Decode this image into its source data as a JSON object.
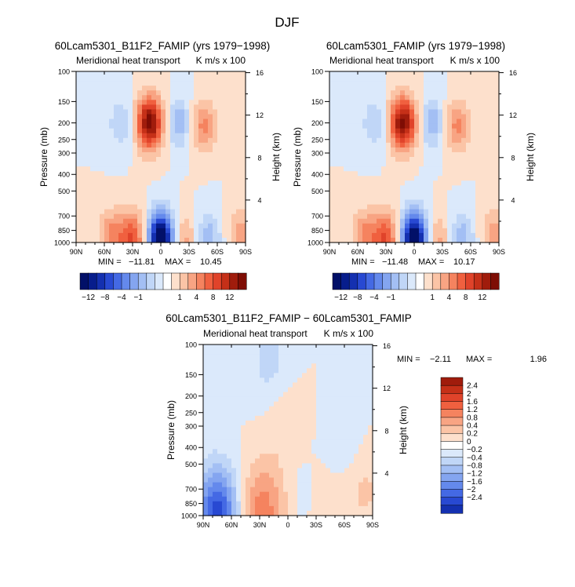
{
  "page_title": "DJF",
  "colors": {
    "pos": [
      "#fde0cc",
      "#fbc4a6",
      "#f8a483",
      "#f5835f",
      "#f0603f",
      "#e0432a",
      "#c53018",
      "#a01c0c",
      "#7e0d04"
    ],
    "neg": [
      "#dbe9fb",
      "#c0d6f7",
      "#a3bff4",
      "#84a5f0",
      "#6489ec",
      "#4469e4",
      "#2849d2",
      "#1430b0",
      "#071d8c",
      "#021068"
    ],
    "zero": "#ffffff"
  },
  "chart_data": [
    {
      "id": "panel1",
      "type": "heatmap",
      "title": "60Lcam5301_B11F2_FAMIP (yrs 1979−1998)",
      "subtitle_left": "Meridional heat transport",
      "subtitle_right": "K m/s x 100",
      "ylabel": "Pressure (mb)",
      "y2label": "Height (km)",
      "x_ticks": [
        "90N",
        "60N",
        "30N",
        "0",
        "30S",
        "60S",
        "90S"
      ],
      "x_values": [
        90,
        60,
        30,
        0,
        -30,
        -60,
        -90
      ],
      "y_ticks": [
        100,
        150,
        200,
        250,
        300,
        400,
        500,
        700,
        850,
        1000
      ],
      "y2_ticks": [
        4,
        8,
        12,
        16
      ],
      "stats": {
        "min_label": "MIN =",
        "min": "−11.81",
        "max_label": "MAX =",
        "max": "10.45"
      },
      "colorbar_labels": [
        "−12",
        "−8",
        "−4",
        "−1",
        "1",
        "4",
        "8",
        "12"
      ],
      "features": [
        {
          "lat": 30,
          "p": 950,
          "v": 6
        },
        {
          "lat": 52,
          "p": 930,
          "v": 4
        },
        {
          "lat": 0,
          "p": 950,
          "v": -11.81
        },
        {
          "lat": -25,
          "p": 960,
          "v": 3
        },
        {
          "lat": -50,
          "p": 950,
          "v": -3
        },
        {
          "lat": -85,
          "p": 900,
          "v": 3
        },
        {
          "lat": 12,
          "p": 200,
          "v": 10.45
        },
        {
          "lat": -45,
          "p": 210,
          "v": 4
        },
        {
          "lat": -20,
          "p": 200,
          "v": -3
        },
        {
          "lat": 42,
          "p": 200,
          "v": -2
        }
      ]
    },
    {
      "id": "panel2",
      "type": "heatmap",
      "title": "60Lcam5301_FAMIP (yrs 1979−1998)",
      "subtitle_left": "Meridional heat transport",
      "subtitle_right": "K m/s x 100",
      "ylabel": "Pressure (mb)",
      "y2label": "Height (km)",
      "x_ticks": [
        "90N",
        "60N",
        "30N",
        "0",
        "30S",
        "60S",
        "90S"
      ],
      "x_values": [
        90,
        60,
        30,
        0,
        -30,
        -60,
        -90
      ],
      "y_ticks": [
        100,
        150,
        200,
        250,
        300,
        400,
        500,
        700,
        850,
        1000
      ],
      "y2_ticks": [
        4,
        8,
        12,
        16
      ],
      "stats": {
        "min_label": "MIN =",
        "min": "−11.48",
        "max_label": "MAX =",
        "max": "10.17"
      },
      "colorbar_labels": [
        "−12",
        "−8",
        "−4",
        "−1",
        "1",
        "4",
        "8",
        "12"
      ],
      "features": [
        {
          "lat": 30,
          "p": 950,
          "v": 6
        },
        {
          "lat": 52,
          "p": 930,
          "v": 4
        },
        {
          "lat": 0,
          "p": 950,
          "v": -11.48
        },
        {
          "lat": -25,
          "p": 960,
          "v": 3
        },
        {
          "lat": -50,
          "p": 950,
          "v": -3
        },
        {
          "lat": -85,
          "p": 900,
          "v": 3
        },
        {
          "lat": 12,
          "p": 200,
          "v": 10.17
        },
        {
          "lat": -45,
          "p": 210,
          "v": 4
        },
        {
          "lat": -20,
          "p": 200,
          "v": -3
        },
        {
          "lat": 42,
          "p": 200,
          "v": -2
        }
      ]
    },
    {
      "id": "panel3",
      "type": "heatmap",
      "title": "60Lcam5301_B11F2_FAMIP − 60Lcam5301_FAMIP",
      "subtitle_left": "Meridional heat transport",
      "subtitle_right": "K m/s x 100",
      "ylabel": "Pressure (mb)",
      "y2label": "Height (km)",
      "x_ticks": [
        "90N",
        "60N",
        "30N",
        "0",
        "30S",
        "60S",
        "90S"
      ],
      "x_values": [
        90,
        60,
        30,
        0,
        -30,
        -60,
        -90
      ],
      "y_ticks": [
        100,
        150,
        200,
        250,
        300,
        400,
        500,
        700,
        850,
        1000
      ],
      "y2_ticks": [
        4,
        8,
        12,
        16
      ],
      "stats": {
        "min_label": "MIN =",
        "min": "−2.11",
        "max_label": "MAX =",
        "max": "1.96"
      },
      "colorbar_labels": [
        "2.4",
        "2",
        "1.6",
        "1.2",
        "0.8",
        "0.4",
        "0.2",
        "0",
        "−0.2",
        "−0.4",
        "−0.8",
        "−1.2",
        "−1.6",
        "−2",
        "−2.4"
      ],
      "features": [
        {
          "lat": 75,
          "p": 950,
          "v": -1.4
        },
        {
          "lat": 30,
          "p": 900,
          "v": 0.7
        },
        {
          "lat": 10,
          "p": 950,
          "v": 0.3
        },
        {
          "lat": -10,
          "p": 850,
          "v": -0.2
        },
        {
          "lat": -40,
          "p": 900,
          "v": 0.2
        },
        {
          "lat": -80,
          "p": 700,
          "v": 0.3
        },
        {
          "lat": 20,
          "p": 130,
          "v": -0.3
        },
        {
          "lat": 5,
          "p": 300,
          "v": 0.2
        },
        {
          "lat": -60,
          "p": 400,
          "v": -0.2
        }
      ]
    }
  ]
}
